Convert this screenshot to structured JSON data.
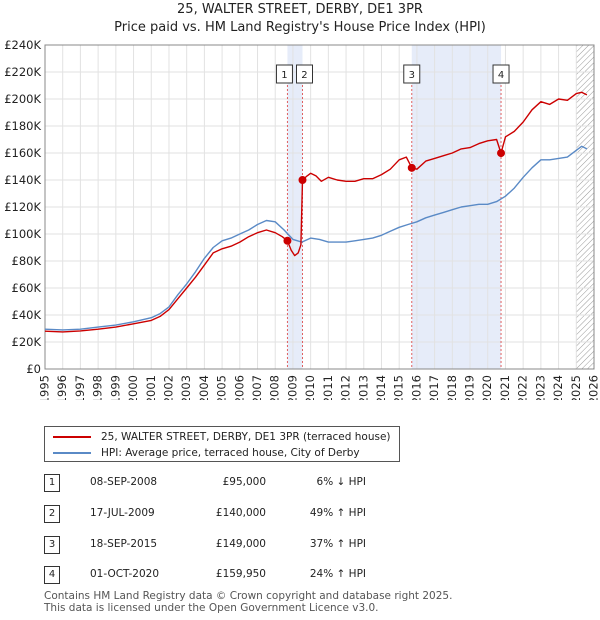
{
  "chart_data": {
    "type": "line",
    "title": "25, WALTER STREET, DERBY, DE1 3PR",
    "subtitle": "Price paid vs. HM Land Registry's House Price Index (HPI)",
    "xlabel": "",
    "ylabel": "",
    "xlim": [
      1995,
      2026
    ],
    "ylim": [
      0,
      240000
    ],
    "grid": true,
    "y_ticks": [
      0,
      20000,
      40000,
      60000,
      80000,
      100000,
      120000,
      140000,
      160000,
      180000,
      200000,
      220000,
      240000
    ],
    "y_tick_labels": [
      "£0",
      "£20K",
      "£40K",
      "£60K",
      "£80K",
      "£100K",
      "£120K",
      "£140K",
      "£160K",
      "£180K",
      "£200K",
      "£220K",
      "£240K"
    ],
    "x_ticks": [
      1995,
      1996,
      1997,
      1998,
      1999,
      2000,
      2001,
      2002,
      2003,
      2004,
      2005,
      2006,
      2007,
      2008,
      2009,
      2010,
      2011,
      2012,
      2013,
      2014,
      2015,
      2016,
      2017,
      2018,
      2019,
      2020,
      2021,
      2022,
      2023,
      2024,
      2025,
      2026
    ],
    "x_tick_labels": [
      "1995",
      "1996",
      "1997",
      "1998",
      "1999",
      "2000",
      "2001",
      "2002",
      "2003",
      "2004",
      "2005",
      "2006",
      "2007",
      "2008",
      "2009",
      "2010",
      "2011",
      "2012",
      "2013",
      "2014",
      "2015",
      "2016",
      "2017",
      "2018",
      "2019",
      "2020",
      "2021",
      "2022",
      "2023",
      "2024",
      "2025",
      "2026"
    ],
    "shaded_periods": [
      [
        2008.69,
        2009.54
      ],
      [
        2015.71,
        2020.75
      ]
    ],
    "hatched_from": 2025.0,
    "series": [
      {
        "name": "25, WALTER STREET, DERBY, DE1 3PR (terraced house)",
        "color": "#cc0000",
        "points": [
          [
            1995.0,
            28000
          ],
          [
            1996.0,
            27500
          ],
          [
            1997.0,
            28200
          ],
          [
            1998.0,
            29500
          ],
          [
            1999.0,
            31000
          ],
          [
            2000.0,
            33500
          ],
          [
            2001.0,
            36000
          ],
          [
            2001.5,
            39000
          ],
          [
            2002.0,
            44000
          ],
          [
            2002.5,
            52000
          ],
          [
            2003.0,
            60000
          ],
          [
            2003.5,
            68000
          ],
          [
            2004.0,
            77000
          ],
          [
            2004.5,
            86000
          ],
          [
            2005.0,
            89000
          ],
          [
            2005.5,
            91000
          ],
          [
            2006.0,
            94000
          ],
          [
            2006.5,
            98000
          ],
          [
            2007.0,
            101000
          ],
          [
            2007.5,
            103000
          ],
          [
            2008.0,
            101000
          ],
          [
            2008.4,
            98000
          ],
          [
            2008.69,
            95000
          ],
          [
            2008.9,
            88000
          ],
          [
            2009.1,
            84000
          ],
          [
            2009.3,
            86000
          ],
          [
            2009.45,
            92000
          ],
          [
            2009.54,
            140000
          ],
          [
            2009.8,
            143000
          ],
          [
            2010.0,
            145000
          ],
          [
            2010.3,
            143000
          ],
          [
            2010.6,
            139000
          ],
          [
            2011.0,
            142000
          ],
          [
            2011.5,
            140000
          ],
          [
            2012.0,
            139000
          ],
          [
            2012.5,
            139000
          ],
          [
            2013.0,
            141000
          ],
          [
            2013.5,
            141000
          ],
          [
            2014.0,
            144000
          ],
          [
            2014.5,
            148000
          ],
          [
            2015.0,
            155000
          ],
          [
            2015.4,
            157000
          ],
          [
            2015.71,
            149000
          ],
          [
            2016.0,
            148000
          ],
          [
            2016.5,
            154000
          ],
          [
            2017.0,
            156000
          ],
          [
            2017.5,
            158000
          ],
          [
            2018.0,
            160000
          ],
          [
            2018.5,
            163000
          ],
          [
            2019.0,
            164000
          ],
          [
            2019.5,
            167000
          ],
          [
            2020.0,
            169000
          ],
          [
            2020.5,
            170000
          ],
          [
            2020.75,
            159950
          ],
          [
            2021.0,
            172000
          ],
          [
            2021.5,
            176000
          ],
          [
            2022.0,
            183000
          ],
          [
            2022.5,
            192000
          ],
          [
            2023.0,
            198000
          ],
          [
            2023.5,
            196000
          ],
          [
            2024.0,
            200000
          ],
          [
            2024.5,
            199000
          ],
          [
            2025.0,
            204000
          ],
          [
            2025.3,
            205000
          ],
          [
            2025.6,
            203000
          ]
        ]
      },
      {
        "name": "HPI: Average price, terraced house, City of Derby",
        "color": "#5a8ac6",
        "points": [
          [
            1995.0,
            29500
          ],
          [
            1996.0,
            29000
          ],
          [
            1997.0,
            29500
          ],
          [
            1998.0,
            31000
          ],
          [
            1999.0,
            32500
          ],
          [
            2000.0,
            35000
          ],
          [
            2001.0,
            38000
          ],
          [
            2001.5,
            41000
          ],
          [
            2002.0,
            46000
          ],
          [
            2002.5,
            55000
          ],
          [
            2003.0,
            63000
          ],
          [
            2003.5,
            72000
          ],
          [
            2004.0,
            82000
          ],
          [
            2004.5,
            90000
          ],
          [
            2005.0,
            95000
          ],
          [
            2005.5,
            97000
          ],
          [
            2006.0,
            100000
          ],
          [
            2006.5,
            103000
          ],
          [
            2007.0,
            107000
          ],
          [
            2007.5,
            110000
          ],
          [
            2008.0,
            109000
          ],
          [
            2008.5,
            103000
          ],
          [
            2009.0,
            96000
          ],
          [
            2009.5,
            94000
          ],
          [
            2010.0,
            97000
          ],
          [
            2010.5,
            96000
          ],
          [
            2011.0,
            94000
          ],
          [
            2011.5,
            94000
          ],
          [
            2012.0,
            94000
          ],
          [
            2012.5,
            95000
          ],
          [
            2013.0,
            96000
          ],
          [
            2013.5,
            97000
          ],
          [
            2014.0,
            99000
          ],
          [
            2014.5,
            102000
          ],
          [
            2015.0,
            105000
          ],
          [
            2015.5,
            107000
          ],
          [
            2016.0,
            109000
          ],
          [
            2016.5,
            112000
          ],
          [
            2017.0,
            114000
          ],
          [
            2017.5,
            116000
          ],
          [
            2018.0,
            118000
          ],
          [
            2018.5,
            120000
          ],
          [
            2019.0,
            121000
          ],
          [
            2019.5,
            122000
          ],
          [
            2020.0,
            122000
          ],
          [
            2020.5,
            124000
          ],
          [
            2021.0,
            128000
          ],
          [
            2021.5,
            134000
          ],
          [
            2022.0,
            142000
          ],
          [
            2022.5,
            149000
          ],
          [
            2023.0,
            155000
          ],
          [
            2023.5,
            155000
          ],
          [
            2024.0,
            156000
          ],
          [
            2024.5,
            157000
          ],
          [
            2025.0,
            162000
          ],
          [
            2025.3,
            165000
          ],
          [
            2025.6,
            163000
          ]
        ]
      }
    ],
    "markers": [
      {
        "label": "1",
        "x": 2008.69,
        "y": 95000
      },
      {
        "label": "2",
        "x": 2009.54,
        "y": 140000
      },
      {
        "label": "3",
        "x": 2015.71,
        "y": 149000
      },
      {
        "label": "4",
        "x": 2020.75,
        "y": 159950
      }
    ]
  },
  "legend": {
    "property_label": "25, WALTER STREET, DERBY, DE1 3PR (terraced house)",
    "hpi_label": "HPI: Average price, terraced house, City of Derby",
    "property_color": "#cc0000",
    "hpi_color": "#5a8ac6"
  },
  "transactions": [
    {
      "num": "1",
      "date": "08-SEP-2008",
      "price": "£95,000",
      "hpi": "6% ↓ HPI"
    },
    {
      "num": "2",
      "date": "17-JUL-2009",
      "price": "£140,000",
      "hpi": "49% ↑ HPI"
    },
    {
      "num": "3",
      "date": "18-SEP-2015",
      "price": "£149,000",
      "hpi": "37% ↑ HPI"
    },
    {
      "num": "4",
      "date": "01-OCT-2020",
      "price": "£159,950",
      "hpi": "24% ↑ HPI"
    }
  ],
  "footer": {
    "line1": "Contains HM Land Registry data © Crown copyright and database right 2025.",
    "line2": "This data is licensed under the Open Government Licence v3.0."
  }
}
